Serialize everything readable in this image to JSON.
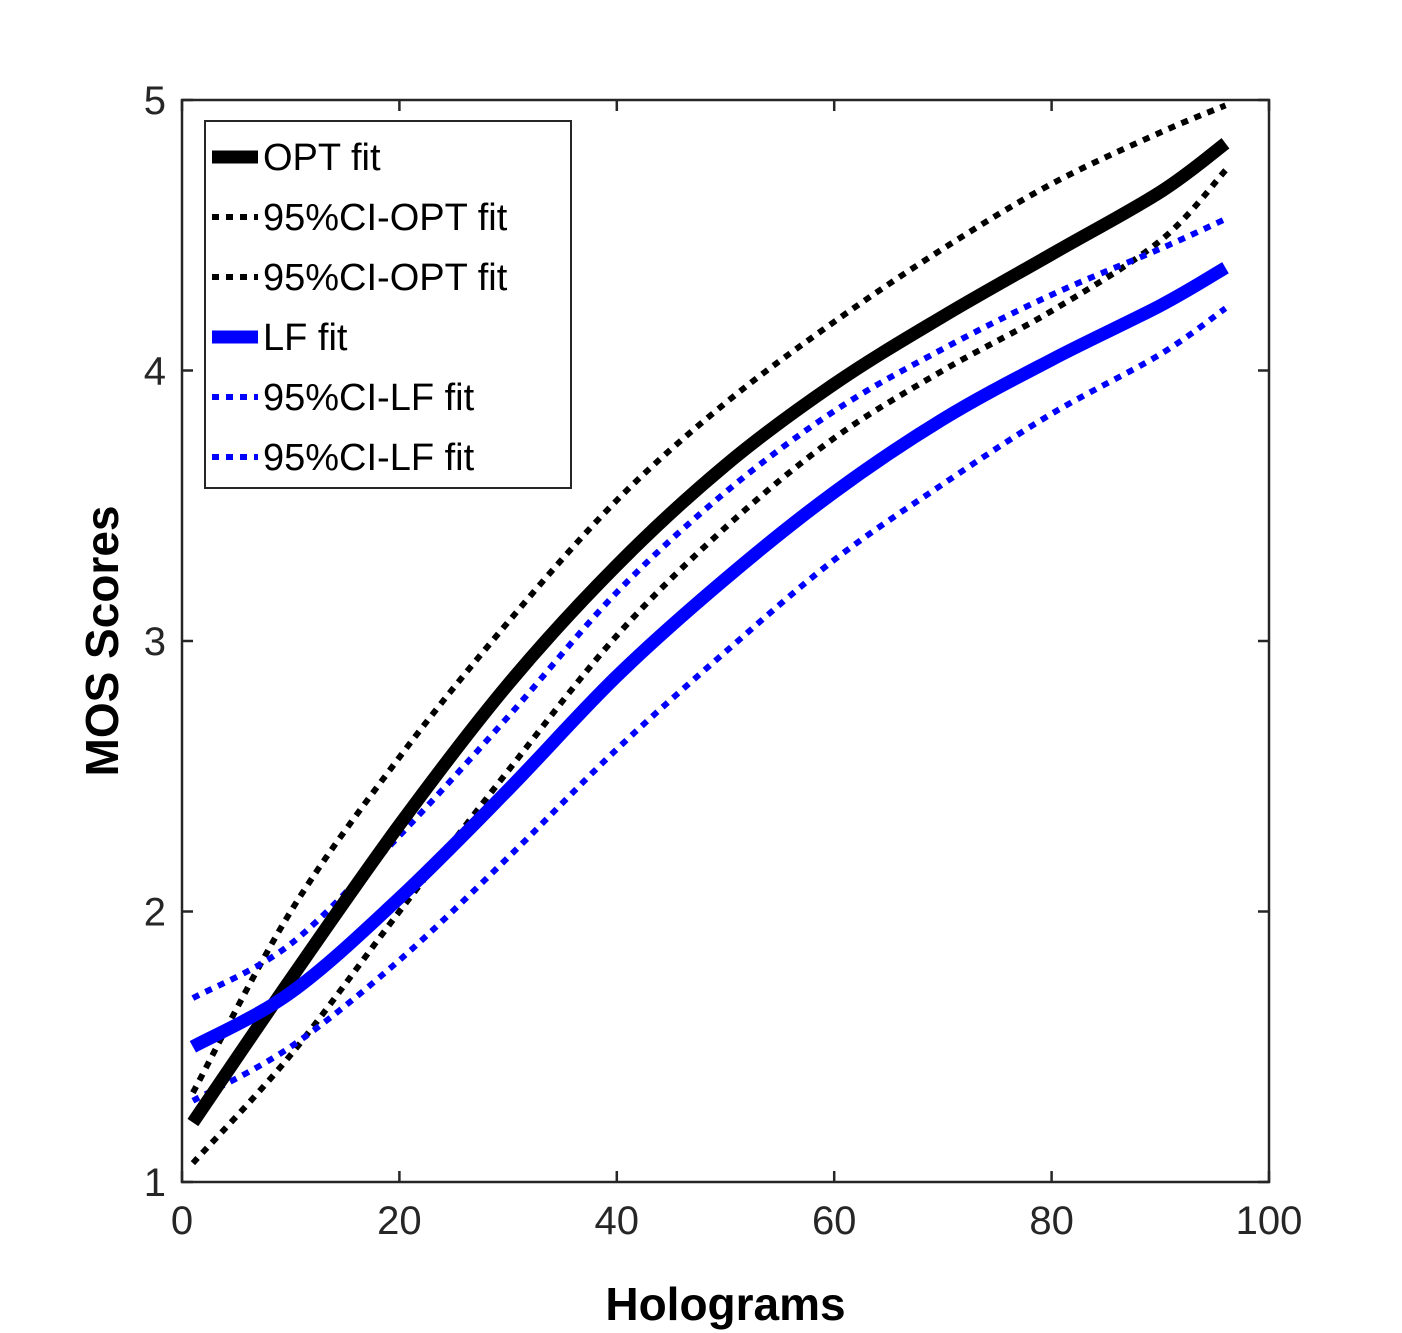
{
  "chart_data": {
    "type": "line",
    "title": "",
    "xlabel": "Holograms",
    "ylabel": "MOS Scores",
    "xlim": [
      0,
      100
    ],
    "ylim": [
      1,
      5
    ],
    "xticks": [
      "0",
      "20",
      "40",
      "60",
      "80",
      "100"
    ],
    "yticks": [
      "1",
      "2",
      "3",
      "4",
      "5"
    ],
    "grid": false,
    "legend_position": "top-left",
    "series": [
      {
        "name": "OPT fit",
        "color": "#000000",
        "style": "solid",
        "x": [
          1,
          10,
          20,
          30,
          40,
          50,
          60,
          70,
          80,
          90,
          96
        ],
        "y": [
          1.22,
          1.75,
          2.32,
          2.84,
          3.28,
          3.65,
          3.95,
          4.2,
          4.43,
          4.66,
          4.84
        ]
      },
      {
        "name": "95%CI-OPT fit",
        "color": "#000000",
        "style": "dotted",
        "x": [
          1,
          10,
          20,
          30,
          40,
          50,
          60,
          70,
          80,
          90,
          96
        ],
        "y": [
          1.33,
          2.0,
          2.57,
          3.07,
          3.52,
          3.88,
          4.18,
          4.45,
          4.69,
          4.88,
          4.98
        ]
      },
      {
        "name": "95%CI-OPT fit",
        "color": "#000000",
        "style": "dotted",
        "x": [
          1,
          10,
          20,
          30,
          40,
          50,
          60,
          70,
          80,
          90,
          96
        ],
        "y": [
          1.07,
          1.47,
          2.0,
          2.52,
          3.02,
          3.42,
          3.75,
          4.0,
          4.22,
          4.48,
          4.74
        ]
      },
      {
        "name": "LF fit",
        "color": "#0000ff",
        "style": "solid",
        "x": [
          1,
          10,
          20,
          30,
          40,
          50,
          60,
          70,
          80,
          90,
          96
        ],
        "y": [
          1.5,
          1.7,
          2.05,
          2.45,
          2.87,
          3.23,
          3.55,
          3.82,
          4.04,
          4.24,
          4.38
        ]
      },
      {
        "name": "95%CI-LF fit",
        "color": "#0000ff",
        "style": "dotted",
        "x": [
          1,
          10,
          20,
          30,
          40,
          50,
          60,
          70,
          80,
          90,
          96
        ],
        "y": [
          1.68,
          1.88,
          2.28,
          2.72,
          3.18,
          3.55,
          3.85,
          4.08,
          4.28,
          4.45,
          4.56
        ]
      },
      {
        "name": "95%CI-LF fit",
        "color": "#0000ff",
        "style": "dotted",
        "x": [
          1,
          10,
          20,
          30,
          40,
          50,
          60,
          70,
          80,
          90,
          96
        ],
        "y": [
          1.3,
          1.5,
          1.82,
          2.2,
          2.6,
          2.96,
          3.3,
          3.58,
          3.84,
          4.06,
          4.23
        ]
      }
    ]
  }
}
